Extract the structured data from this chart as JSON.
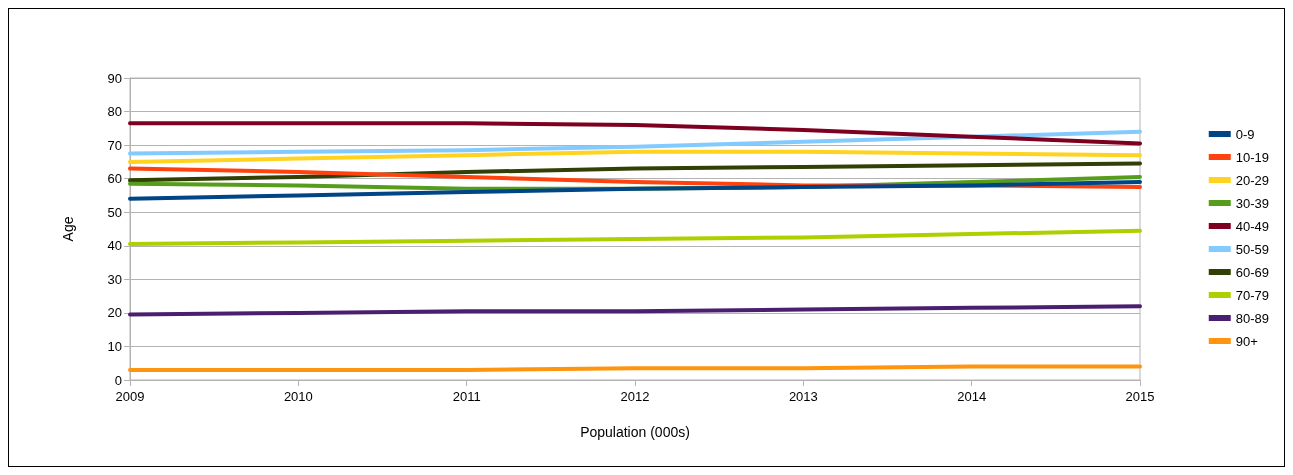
{
  "chart_data": {
    "type": "line",
    "xlabel": "Population (000s)",
    "ylabel": "Age",
    "x": [
      2009,
      2010,
      2011,
      2012,
      2013,
      2014,
      2015
    ],
    "xlim": [
      2009,
      2015
    ],
    "xticks": [
      2009,
      2010,
      2011,
      2012,
      2013,
      2014,
      2015
    ],
    "ylim": [
      0,
      90
    ],
    "yticks": [
      0,
      10,
      20,
      30,
      40,
      50,
      60,
      70,
      80,
      90
    ],
    "grid": "y",
    "legend": "right",
    "marker": "none",
    "line_style": "solid",
    "series": [
      {
        "name": "0-9",
        "color": "#004586",
        "values": [
          54,
          55,
          56,
          57,
          57.5,
          58,
          59
        ]
      },
      {
        "name": "10-19",
        "color": "#ff420e",
        "values": [
          63,
          62,
          60.5,
          59,
          58,
          58,
          57.5
        ]
      },
      {
        "name": "20-29",
        "color": "#ffd320",
        "values": [
          65,
          66,
          67,
          68,
          68,
          67.5,
          67
        ]
      },
      {
        "name": "30-39",
        "color": "#579d1c",
        "values": [
          58.5,
          58,
          57,
          57,
          57.5,
          59,
          60.5
        ]
      },
      {
        "name": "40-49",
        "color": "#7e0021",
        "values": [
          76.5,
          76.5,
          76.5,
          76,
          74.5,
          72.5,
          70.5
        ]
      },
      {
        "name": "50-59",
        "color": "#83caff",
        "values": [
          67.5,
          68,
          68.5,
          69.5,
          71,
          72.5,
          74
        ]
      },
      {
        "name": "60-69",
        "color": "#314004",
        "values": [
          59.5,
          60.5,
          62,
          63,
          63.5,
          64,
          64.5
        ]
      },
      {
        "name": "70-79",
        "color": "#aecf00",
        "values": [
          40.5,
          41,
          41.5,
          42,
          42.5,
          43.5,
          44.5
        ]
      },
      {
        "name": "80-89",
        "color": "#4b1f6f",
        "values": [
          19.5,
          20,
          20.5,
          20.5,
          21,
          21.5,
          22
        ]
      },
      {
        "name": "90+",
        "color": "#ff950e",
        "values": [
          3,
          3,
          3,
          3.5,
          3.5,
          4,
          4
        ]
      }
    ]
  }
}
